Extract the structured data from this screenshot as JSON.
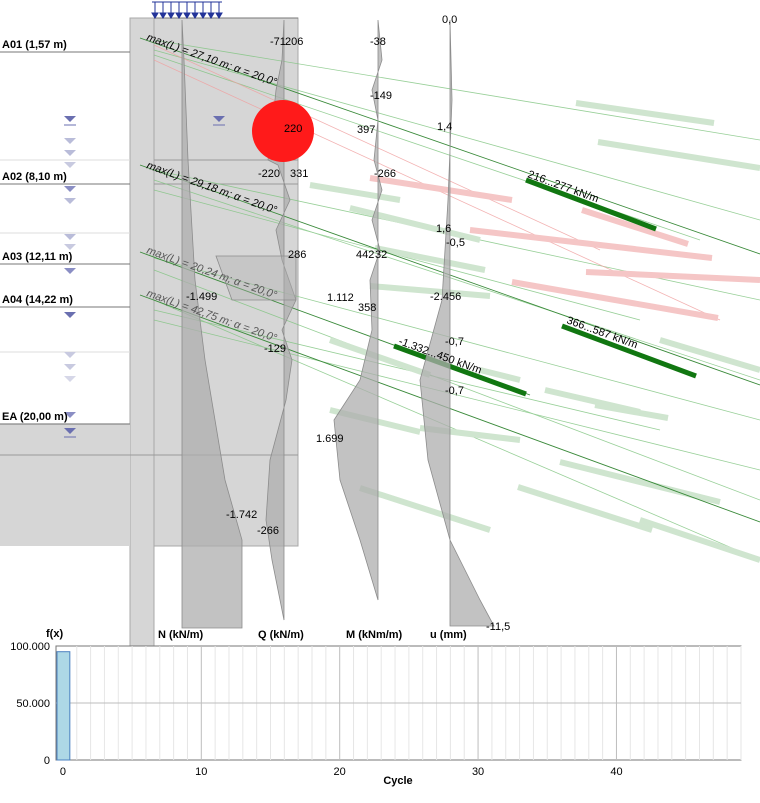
{
  "levels": [
    {
      "label": "A01 (1,57 m)"
    },
    {
      "label": "A02 (8,10 m)"
    },
    {
      "label": "A03 (12,11 m)"
    },
    {
      "label": "A04 (14,22 m)"
    },
    {
      "label": "EA (20,00 m)"
    }
  ],
  "anchors": [
    {
      "label": "max(L) = 27,10 m; α = 20,0°"
    },
    {
      "label": "max(L) = 29,18 m; α = 20,0°"
    },
    {
      "label": "max(L) = 20,24 m; α = 20,0°"
    },
    {
      "label": "max(L) = 42,75 m; α = 20,0°"
    }
  ],
  "forces": [
    {
      "label": "216...277 kN/m"
    },
    {
      "label": "366...587 kN/m"
    },
    {
      "label": "-1.332...450 kN/m"
    }
  ],
  "diagram_headers": {
    "n": "N (kN/m)",
    "q": "Q (kN/m)",
    "m": "M (kNm/m)",
    "u": "u (mm)"
  },
  "values": {
    "n1": "-71",
    "q1": "206",
    "m1": "-38",
    "u0": "0,0",
    "m2": "-149",
    "q2": "220",
    "m3": "397",
    "u1": "1,4",
    "n2": "-220",
    "q3": "331",
    "m4": "-266",
    "u2": "1,6",
    "u3": "-0,5",
    "q4": "286",
    "m5": "442",
    "m6": "32",
    "n3": "-1.499",
    "m7": "1.112",
    "m8": "358",
    "u4": "-2.456",
    "u5": "-0,7",
    "q5": "-129",
    "u6": "-0,7",
    "m9": "1.699",
    "n4": "-1.742",
    "q6": "-266",
    "u7": "-11,5"
  },
  "chart_data": {
    "type": "bar",
    "ylabel": "f(x)",
    "xlabel": "Cycle",
    "x": [
      0
    ],
    "values": [
      95000
    ],
    "xlim": [
      -0.5,
      49
    ],
    "ylim": [
      0,
      100000
    ],
    "xticks": [
      "0",
      "10",
      "20",
      "30",
      "40"
    ],
    "yticks": [
      "0",
      "50.000",
      "100.000"
    ],
    "bar_color": "#add8e6",
    "grid": true
  }
}
